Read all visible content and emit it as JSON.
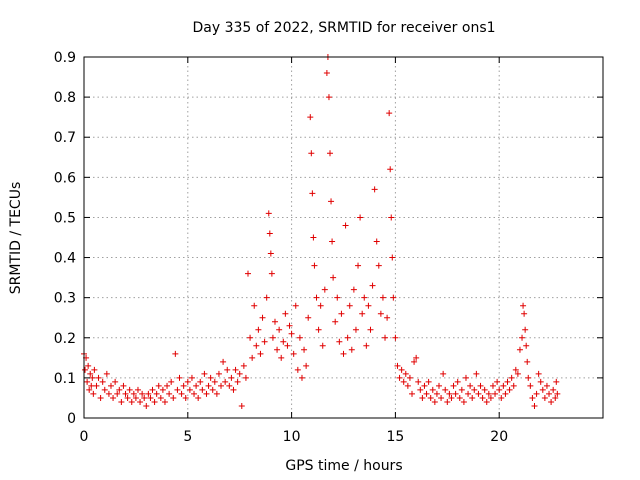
{
  "chart_data": {
    "type": "scatter",
    "title": "Day 335 of 2022, SRMTID for receiver ons1",
    "xlabel": "GPS time / hours",
    "ylabel": "SRMTID / TECUs",
    "xlim": [
      0,
      25
    ],
    "ylim": [
      0,
      0.9
    ],
    "xticks": [
      0,
      5,
      10,
      15,
      20
    ],
    "xtick_labels": [
      "0",
      "5",
      "10",
      "15",
      "20"
    ],
    "yticks": [
      0,
      0.1,
      0.2,
      0.3,
      0.4,
      0.5,
      0.6,
      0.7,
      0.8,
      0.9
    ],
    "ytick_labels": [
      "0",
      "0.1",
      "0.2",
      "0.3",
      "0.4",
      "0.5",
      "0.6",
      "0.7",
      "0.8",
      "0.9"
    ],
    "grid": true,
    "marker": "+",
    "series": [
      {
        "name": "SRMTID",
        "color": "#e00000",
        "points": [
          [
            0.0,
            0.16
          ],
          [
            0.05,
            0.12
          ],
          [
            0.1,
            0.15
          ],
          [
            0.15,
            0.09
          ],
          [
            0.2,
            0.13
          ],
          [
            0.25,
            0.07
          ],
          [
            0.3,
            0.11
          ],
          [
            0.35,
            0.08
          ],
          [
            0.4,
            0.1
          ],
          [
            0.45,
            0.06
          ],
          [
            0.5,
            0.12
          ],
          [
            0.6,
            0.08
          ],
          [
            0.7,
            0.1
          ],
          [
            0.8,
            0.05
          ],
          [
            0.9,
            0.09
          ],
          [
            1.0,
            0.07
          ],
          [
            1.1,
            0.11
          ],
          [
            1.2,
            0.06
          ],
          [
            1.3,
            0.08
          ],
          [
            1.4,
            0.05
          ],
          [
            1.5,
            0.09
          ],
          [
            1.6,
            0.06
          ],
          [
            1.7,
            0.07
          ],
          [
            1.8,
            0.04
          ],
          [
            1.9,
            0.08
          ],
          [
            2.0,
            0.06
          ],
          [
            2.1,
            0.05
          ],
          [
            2.2,
            0.07
          ],
          [
            2.3,
            0.04
          ],
          [
            2.4,
            0.06
          ],
          [
            2.5,
            0.05
          ],
          [
            2.6,
            0.07
          ],
          [
            2.7,
            0.04
          ],
          [
            2.8,
            0.06
          ],
          [
            2.9,
            0.05
          ],
          [
            3.0,
            0.03
          ],
          [
            3.1,
            0.06
          ],
          [
            3.2,
            0.05
          ],
          [
            3.3,
            0.07
          ],
          [
            3.4,
            0.04
          ],
          [
            3.5,
            0.06
          ],
          [
            3.6,
            0.08
          ],
          [
            3.7,
            0.05
          ],
          [
            3.8,
            0.07
          ],
          [
            3.9,
            0.04
          ],
          [
            4.0,
            0.08
          ],
          [
            4.1,
            0.06
          ],
          [
            4.2,
            0.09
          ],
          [
            4.3,
            0.05
          ],
          [
            4.4,
            0.16
          ],
          [
            4.5,
            0.07
          ],
          [
            4.6,
            0.1
          ],
          [
            4.7,
            0.06
          ],
          [
            4.8,
            0.08
          ],
          [
            4.9,
            0.05
          ],
          [
            5.0,
            0.09
          ],
          [
            5.1,
            0.07
          ],
          [
            5.2,
            0.1
          ],
          [
            5.3,
            0.06
          ],
          [
            5.4,
            0.08
          ],
          [
            5.5,
            0.05
          ],
          [
            5.6,
            0.09
          ],
          [
            5.7,
            0.07
          ],
          [
            5.8,
            0.11
          ],
          [
            5.9,
            0.06
          ],
          [
            6.0,
            0.08
          ],
          [
            6.1,
            0.1
          ],
          [
            6.2,
            0.07
          ],
          [
            6.3,
            0.09
          ],
          [
            6.4,
            0.06
          ],
          [
            6.5,
            0.11
          ],
          [
            6.6,
            0.08
          ],
          [
            6.7,
            0.14
          ],
          [
            6.8,
            0.09
          ],
          [
            6.9,
            0.12
          ],
          [
            7.0,
            0.08
          ],
          [
            7.1,
            0.1
          ],
          [
            7.2,
            0.07
          ],
          [
            7.3,
            0.12
          ],
          [
            7.4,
            0.09
          ],
          [
            7.5,
            0.11
          ],
          [
            7.6,
            0.03
          ],
          [
            7.7,
            0.13
          ],
          [
            7.8,
            0.1
          ],
          [
            7.9,
            0.36
          ],
          [
            8.0,
            0.2
          ],
          [
            8.1,
            0.15
          ],
          [
            8.2,
            0.28
          ],
          [
            8.3,
            0.18
          ],
          [
            8.4,
            0.22
          ],
          [
            8.5,
            0.16
          ],
          [
            8.6,
            0.25
          ],
          [
            8.7,
            0.19
          ],
          [
            8.8,
            0.3
          ],
          [
            8.9,
            0.51
          ],
          [
            8.95,
            0.46
          ],
          [
            9.0,
            0.41
          ],
          [
            9.05,
            0.36
          ],
          [
            9.1,
            0.2
          ],
          [
            9.2,
            0.24
          ],
          [
            9.3,
            0.17
          ],
          [
            9.4,
            0.22
          ],
          [
            9.5,
            0.15
          ],
          [
            9.6,
            0.19
          ],
          [
            9.7,
            0.26
          ],
          [
            9.8,
            0.18
          ],
          [
            9.9,
            0.23
          ],
          [
            10.0,
            0.21
          ],
          [
            10.1,
            0.16
          ],
          [
            10.2,
            0.28
          ],
          [
            10.3,
            0.12
          ],
          [
            10.4,
            0.2
          ],
          [
            10.5,
            0.1
          ],
          [
            10.6,
            0.17
          ],
          [
            10.7,
            0.13
          ],
          [
            10.8,
            0.25
          ],
          [
            10.9,
            0.75
          ],
          [
            10.95,
            0.66
          ],
          [
            11.0,
            0.56
          ],
          [
            11.05,
            0.45
          ],
          [
            11.1,
            0.38
          ],
          [
            11.2,
            0.3
          ],
          [
            11.3,
            0.22
          ],
          [
            11.4,
            0.28
          ],
          [
            11.5,
            0.18
          ],
          [
            11.6,
            0.32
          ],
          [
            11.7,
            0.86
          ],
          [
            11.75,
            0.9
          ],
          [
            11.8,
            0.8
          ],
          [
            11.85,
            0.66
          ],
          [
            11.9,
            0.54
          ],
          [
            11.95,
            0.44
          ],
          [
            12.0,
            0.35
          ],
          [
            12.1,
            0.24
          ],
          [
            12.2,
            0.3
          ],
          [
            12.3,
            0.19
          ],
          [
            12.4,
            0.26
          ],
          [
            12.5,
            0.16
          ],
          [
            12.6,
            0.48
          ],
          [
            12.7,
            0.2
          ],
          [
            12.8,
            0.28
          ],
          [
            12.9,
            0.17
          ],
          [
            13.0,
            0.32
          ],
          [
            13.1,
            0.22
          ],
          [
            13.2,
            0.38
          ],
          [
            13.3,
            0.5
          ],
          [
            13.4,
            0.26
          ],
          [
            13.5,
            0.3
          ],
          [
            13.6,
            0.18
          ],
          [
            13.7,
            0.28
          ],
          [
            13.8,
            0.22
          ],
          [
            13.9,
            0.33
          ],
          [
            14.0,
            0.57
          ],
          [
            14.1,
            0.44
          ],
          [
            14.2,
            0.38
          ],
          [
            14.3,
            0.26
          ],
          [
            14.4,
            0.3
          ],
          [
            14.5,
            0.2
          ],
          [
            14.6,
            0.25
          ],
          [
            14.7,
            0.76
          ],
          [
            14.75,
            0.62
          ],
          [
            14.8,
            0.5
          ],
          [
            14.85,
            0.4
          ],
          [
            14.9,
            0.3
          ],
          [
            15.0,
            0.2
          ],
          [
            15.1,
            0.13
          ],
          [
            15.2,
            0.1
          ],
          [
            15.3,
            0.12
          ],
          [
            15.4,
            0.09
          ],
          [
            15.5,
            0.11
          ],
          [
            15.6,
            0.08
          ],
          [
            15.7,
            0.1
          ],
          [
            15.8,
            0.06
          ],
          [
            15.9,
            0.14
          ],
          [
            16.0,
            0.15
          ],
          [
            16.1,
            0.09
          ],
          [
            16.2,
            0.07
          ],
          [
            16.3,
            0.05
          ],
          [
            16.4,
            0.08
          ],
          [
            16.5,
            0.06
          ],
          [
            16.6,
            0.09
          ],
          [
            16.7,
            0.05
          ],
          [
            16.8,
            0.07
          ],
          [
            16.9,
            0.04
          ],
          [
            17.0,
            0.06
          ],
          [
            17.1,
            0.08
          ],
          [
            17.2,
            0.05
          ],
          [
            17.3,
            0.11
          ],
          [
            17.4,
            0.07
          ],
          [
            17.5,
            0.04
          ],
          [
            17.6,
            0.06
          ],
          [
            17.7,
            0.05
          ],
          [
            17.8,
            0.08
          ],
          [
            17.9,
            0.06
          ],
          [
            18.0,
            0.09
          ],
          [
            18.1,
            0.05
          ],
          [
            18.2,
            0.07
          ],
          [
            18.3,
            0.04
          ],
          [
            18.4,
            0.1
          ],
          [
            18.5,
            0.06
          ],
          [
            18.6,
            0.08
          ],
          [
            18.7,
            0.05
          ],
          [
            18.8,
            0.07
          ],
          [
            18.9,
            0.11
          ],
          [
            19.0,
            0.06
          ],
          [
            19.1,
            0.08
          ],
          [
            19.2,
            0.05
          ],
          [
            19.3,
            0.07
          ],
          [
            19.4,
            0.04
          ],
          [
            19.5,
            0.06
          ],
          [
            19.6,
            0.05
          ],
          [
            19.7,
            0.08
          ],
          [
            19.8,
            0.06
          ],
          [
            19.9,
            0.09
          ],
          [
            20.0,
            0.07
          ],
          [
            20.1,
            0.05
          ],
          [
            20.2,
            0.08
          ],
          [
            20.3,
            0.06
          ],
          [
            20.4,
            0.09
          ],
          [
            20.5,
            0.07
          ],
          [
            20.6,
            0.1
          ],
          [
            20.7,
            0.08
          ],
          [
            20.8,
            0.12
          ],
          [
            20.9,
            0.11
          ],
          [
            21.0,
            0.17
          ],
          [
            21.1,
            0.2
          ],
          [
            21.15,
            0.28
          ],
          [
            21.2,
            0.26
          ],
          [
            21.25,
            0.22
          ],
          [
            21.3,
            0.18
          ],
          [
            21.35,
            0.14
          ],
          [
            21.4,
            0.1
          ],
          [
            21.5,
            0.08
          ],
          [
            21.6,
            0.05
          ],
          [
            21.7,
            0.03
          ],
          [
            21.8,
            0.06
          ],
          [
            21.9,
            0.11
          ],
          [
            22.0,
            0.09
          ],
          [
            22.1,
            0.07
          ],
          [
            22.2,
            0.05
          ],
          [
            22.3,
            0.08
          ],
          [
            22.4,
            0.06
          ],
          [
            22.5,
            0.04
          ],
          [
            22.6,
            0.07
          ],
          [
            22.7,
            0.05
          ],
          [
            22.75,
            0.09
          ],
          [
            22.8,
            0.06
          ]
        ]
      }
    ]
  }
}
